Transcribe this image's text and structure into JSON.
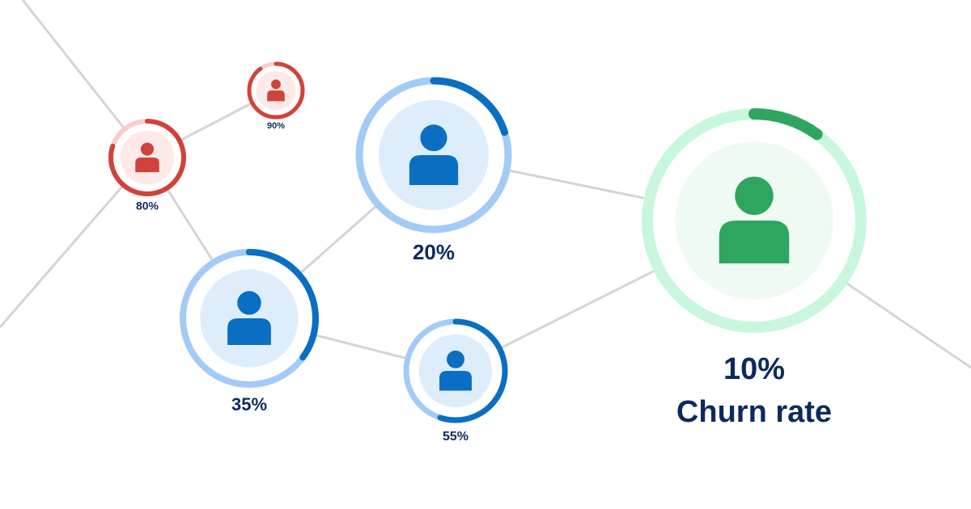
{
  "nodes": [
    {
      "label": "90%",
      "value": 90,
      "color": "#d0433a",
      "track": "#f8cdca",
      "fill": "#fde9e8"
    },
    {
      "label": "80%",
      "value": 80,
      "color": "#d0433a",
      "track": "#f8cdca",
      "fill": "#fde9e8"
    },
    {
      "label": "20%",
      "value": 20,
      "color": "#0a6fc2",
      "track": "#a3cbf7",
      "fill": "#deedfc"
    },
    {
      "label": "35%",
      "value": 35,
      "color": "#0a6fc2",
      "track": "#a3cbf7",
      "fill": "#deedfc"
    },
    {
      "label": "55%",
      "value": 55,
      "color": "#0a6fc2",
      "track": "#a3cbf7",
      "fill": "#deedfc"
    },
    {
      "label": "10%",
      "value": 10,
      "color": "#2ea65f",
      "track": "#c9f7dd",
      "fill": "#eefaf2",
      "caption": "Churn rate"
    }
  ]
}
